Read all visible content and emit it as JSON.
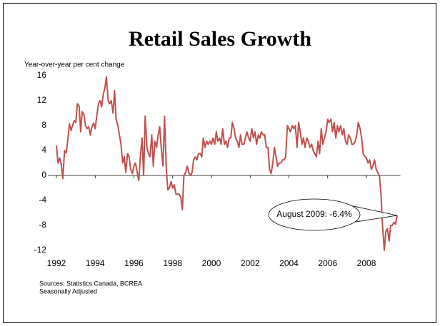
{
  "chart_data": {
    "type": "line",
    "title": "Retail Sales Growth",
    "y_axis_label": "Year-over-year per cent change",
    "annotation": "August 2009: -6.4%",
    "sources": [
      "Sources: Statistics Canada, BCREA",
      "Seasonally Adjusted"
    ],
    "color": "#c0504d",
    "xlim": [
      1992,
      2009.75
    ],
    "xticks": [
      1992,
      1994,
      1996,
      1998,
      2000,
      2002,
      2004,
      2006,
      2008
    ],
    "ylim": [
      -12,
      16
    ],
    "yticks": [
      16,
      12,
      8,
      4,
      0,
      -4,
      -8,
      -12
    ],
    "x": [
      1992.0,
      1992.08,
      1992.17,
      1992.25,
      1992.33,
      1992.42,
      1992.5,
      1992.58,
      1992.67,
      1992.75,
      1992.83,
      1992.92,
      1993.0,
      1993.08,
      1993.17,
      1993.25,
      1993.33,
      1993.42,
      1993.5,
      1993.58,
      1993.67,
      1993.75,
      1993.83,
      1993.92,
      1994.0,
      1994.08,
      1994.17,
      1994.25,
      1994.33,
      1994.42,
      1994.5,
      1994.58,
      1994.67,
      1994.75,
      1994.83,
      1994.92,
      1995.0,
      1995.08,
      1995.17,
      1995.25,
      1995.33,
      1995.42,
      1995.5,
      1995.58,
      1995.67,
      1995.75,
      1995.83,
      1995.92,
      1996.0,
      1996.08,
      1996.17,
      1996.25,
      1996.33,
      1996.42,
      1996.5,
      1996.58,
      1996.67,
      1996.75,
      1996.83,
      1996.92,
      1997.0,
      1997.08,
      1997.17,
      1997.25,
      1997.33,
      1997.42,
      1997.5,
      1997.58,
      1997.67,
      1997.75,
      1997.83,
      1997.92,
      1998.0,
      1998.08,
      1998.17,
      1998.25,
      1998.33,
      1998.42,
      1998.5,
      1998.58,
      1998.67,
      1998.75,
      1998.83,
      1998.92,
      1999.0,
      1999.08,
      1999.17,
      1999.25,
      1999.33,
      1999.42,
      1999.5,
      1999.58,
      1999.67,
      1999.75,
      1999.83,
      1999.92,
      2000.0,
      2000.08,
      2000.17,
      2000.25,
      2000.33,
      2000.42,
      2000.5,
      2000.58,
      2000.67,
      2000.75,
      2000.83,
      2000.92,
      2001.0,
      2001.08,
      2001.17,
      2001.25,
      2001.33,
      2001.42,
      2001.5,
      2001.58,
      2001.67,
      2001.75,
      2001.83,
      2001.92,
      2002.0,
      2002.08,
      2002.17,
      2002.25,
      2002.33,
      2002.42,
      2002.5,
      2002.58,
      2002.67,
      2002.75,
      2002.83,
      2002.92,
      2003.0,
      2003.08,
      2003.17,
      2003.25,
      2003.33,
      2003.42,
      2003.5,
      2003.58,
      2003.67,
      2003.75,
      2003.83,
      2003.92,
      2004.0,
      2004.08,
      2004.17,
      2004.25,
      2004.33,
      2004.42,
      2004.5,
      2004.58,
      2004.67,
      2004.75,
      2004.83,
      2004.92,
      2005.0,
      2005.08,
      2005.17,
      2005.25,
      2005.33,
      2005.42,
      2005.5,
      2005.58,
      2005.67,
      2005.75,
      2005.83,
      2005.92,
      2006.0,
      2006.08,
      2006.17,
      2006.25,
      2006.33,
      2006.42,
      2006.5,
      2006.58,
      2006.67,
      2006.75,
      2006.83,
      2006.92,
      2007.0,
      2007.08,
      2007.17,
      2007.25,
      2007.33,
      2007.42,
      2007.5,
      2007.58,
      2007.67,
      2007.75,
      2007.83,
      2007.92,
      2008.0,
      2008.08,
      2008.17,
      2008.25,
      2008.33,
      2008.42,
      2008.5,
      2008.58,
      2008.67,
      2008.75,
      2008.83,
      2008.92,
      2009.0,
      2009.08,
      2009.17,
      2009.25,
      2009.33,
      2009.42,
      2009.5,
      2009.58
    ],
    "values": [
      4.8,
      2.0,
      2.8,
      1.8,
      -0.5,
      4.0,
      3.6,
      5.5,
      8.3,
      7.2,
      8.0,
      8.8,
      8.5,
      11.5,
      11.2,
      7.0,
      10.2,
      9.8,
      8.0,
      7.5,
      7.8,
      6.5,
      7.8,
      8.4,
      7.5,
      9.5,
      11.5,
      12.0,
      11.0,
      13.0,
      14.0,
      15.8,
      12.0,
      11.5,
      12.0,
      10.0,
      13.6,
      9.0,
      8.0,
      6.5,
      5.0,
      2.0,
      3.0,
      0.5,
      3.5,
      3.0,
      1.0,
      0.3,
      1.5,
      2.0,
      0.5,
      -0.8,
      3.0,
      6.0,
      0.0,
      9.5,
      4.5,
      3.5,
      3.0,
      6.5,
      1.5,
      5.5,
      4.5,
      6.5,
      7.8,
      4.0,
      1.5,
      9.5,
      1.0,
      -2.3,
      -2.0,
      -1.0,
      -2.0,
      -1.5,
      -3.0,
      -3.0,
      -3.0,
      -3.5,
      -5.5,
      0.0,
      0.5,
      1.5,
      0.5,
      0.0,
      0.5,
      2.5,
      3.0,
      2.5,
      3.5,
      3.5,
      3.0,
      6.0,
      4.5,
      5.5,
      5.0,
      5.5,
      5.0,
      6.0,
      5.0,
      7.0,
      5.5,
      6.0,
      5.0,
      7.5,
      5.0,
      5.5,
      4.5,
      6.0,
      6.0,
      8.5,
      7.5,
      6.0,
      5.5,
      4.5,
      6.5,
      5.0,
      5.0,
      6.0,
      7.0,
      6.0,
      5.5,
      7.5,
      6.0,
      7.0,
      5.0,
      6.5,
      6.0,
      7.0,
      6.5,
      6.5,
      4.5,
      4.5,
      1.0,
      0.3,
      2.0,
      4.5,
      3.0,
      1.5,
      2.0,
      2.0,
      2.5,
      2.5,
      3.0,
      8.0,
      7.5,
      7.0,
      8.0,
      7.5,
      8.0,
      4.5,
      8.5,
      7.0,
      5.0,
      6.0,
      4.5,
      6.0,
      5.5,
      4.5,
      5.0,
      4.0,
      3.5,
      3.0,
      5.5,
      3.5,
      7.5,
      5.0,
      6.0,
      7.0,
      9.0,
      8.5,
      9.0,
      7.0,
      8.5,
      6.0,
      8.0,
      7.0,
      8.0,
      6.5,
      7.5,
      5.5,
      5.0,
      6.5,
      6.0,
      5.0,
      5.0,
      5.5,
      6.5,
      8.5,
      7.5,
      6.0,
      3.5,
      3.0,
      2.8,
      2.0,
      2.5,
      1.0,
      1.5,
      2.5,
      1.0,
      0.5,
      0.0,
      -3.0,
      -8.0,
      -12.0,
      -9.0,
      -8.5,
      -10.5,
      -8.0,
      -8.0,
      -7.5,
      -7.8,
      -6.4
    ]
  }
}
